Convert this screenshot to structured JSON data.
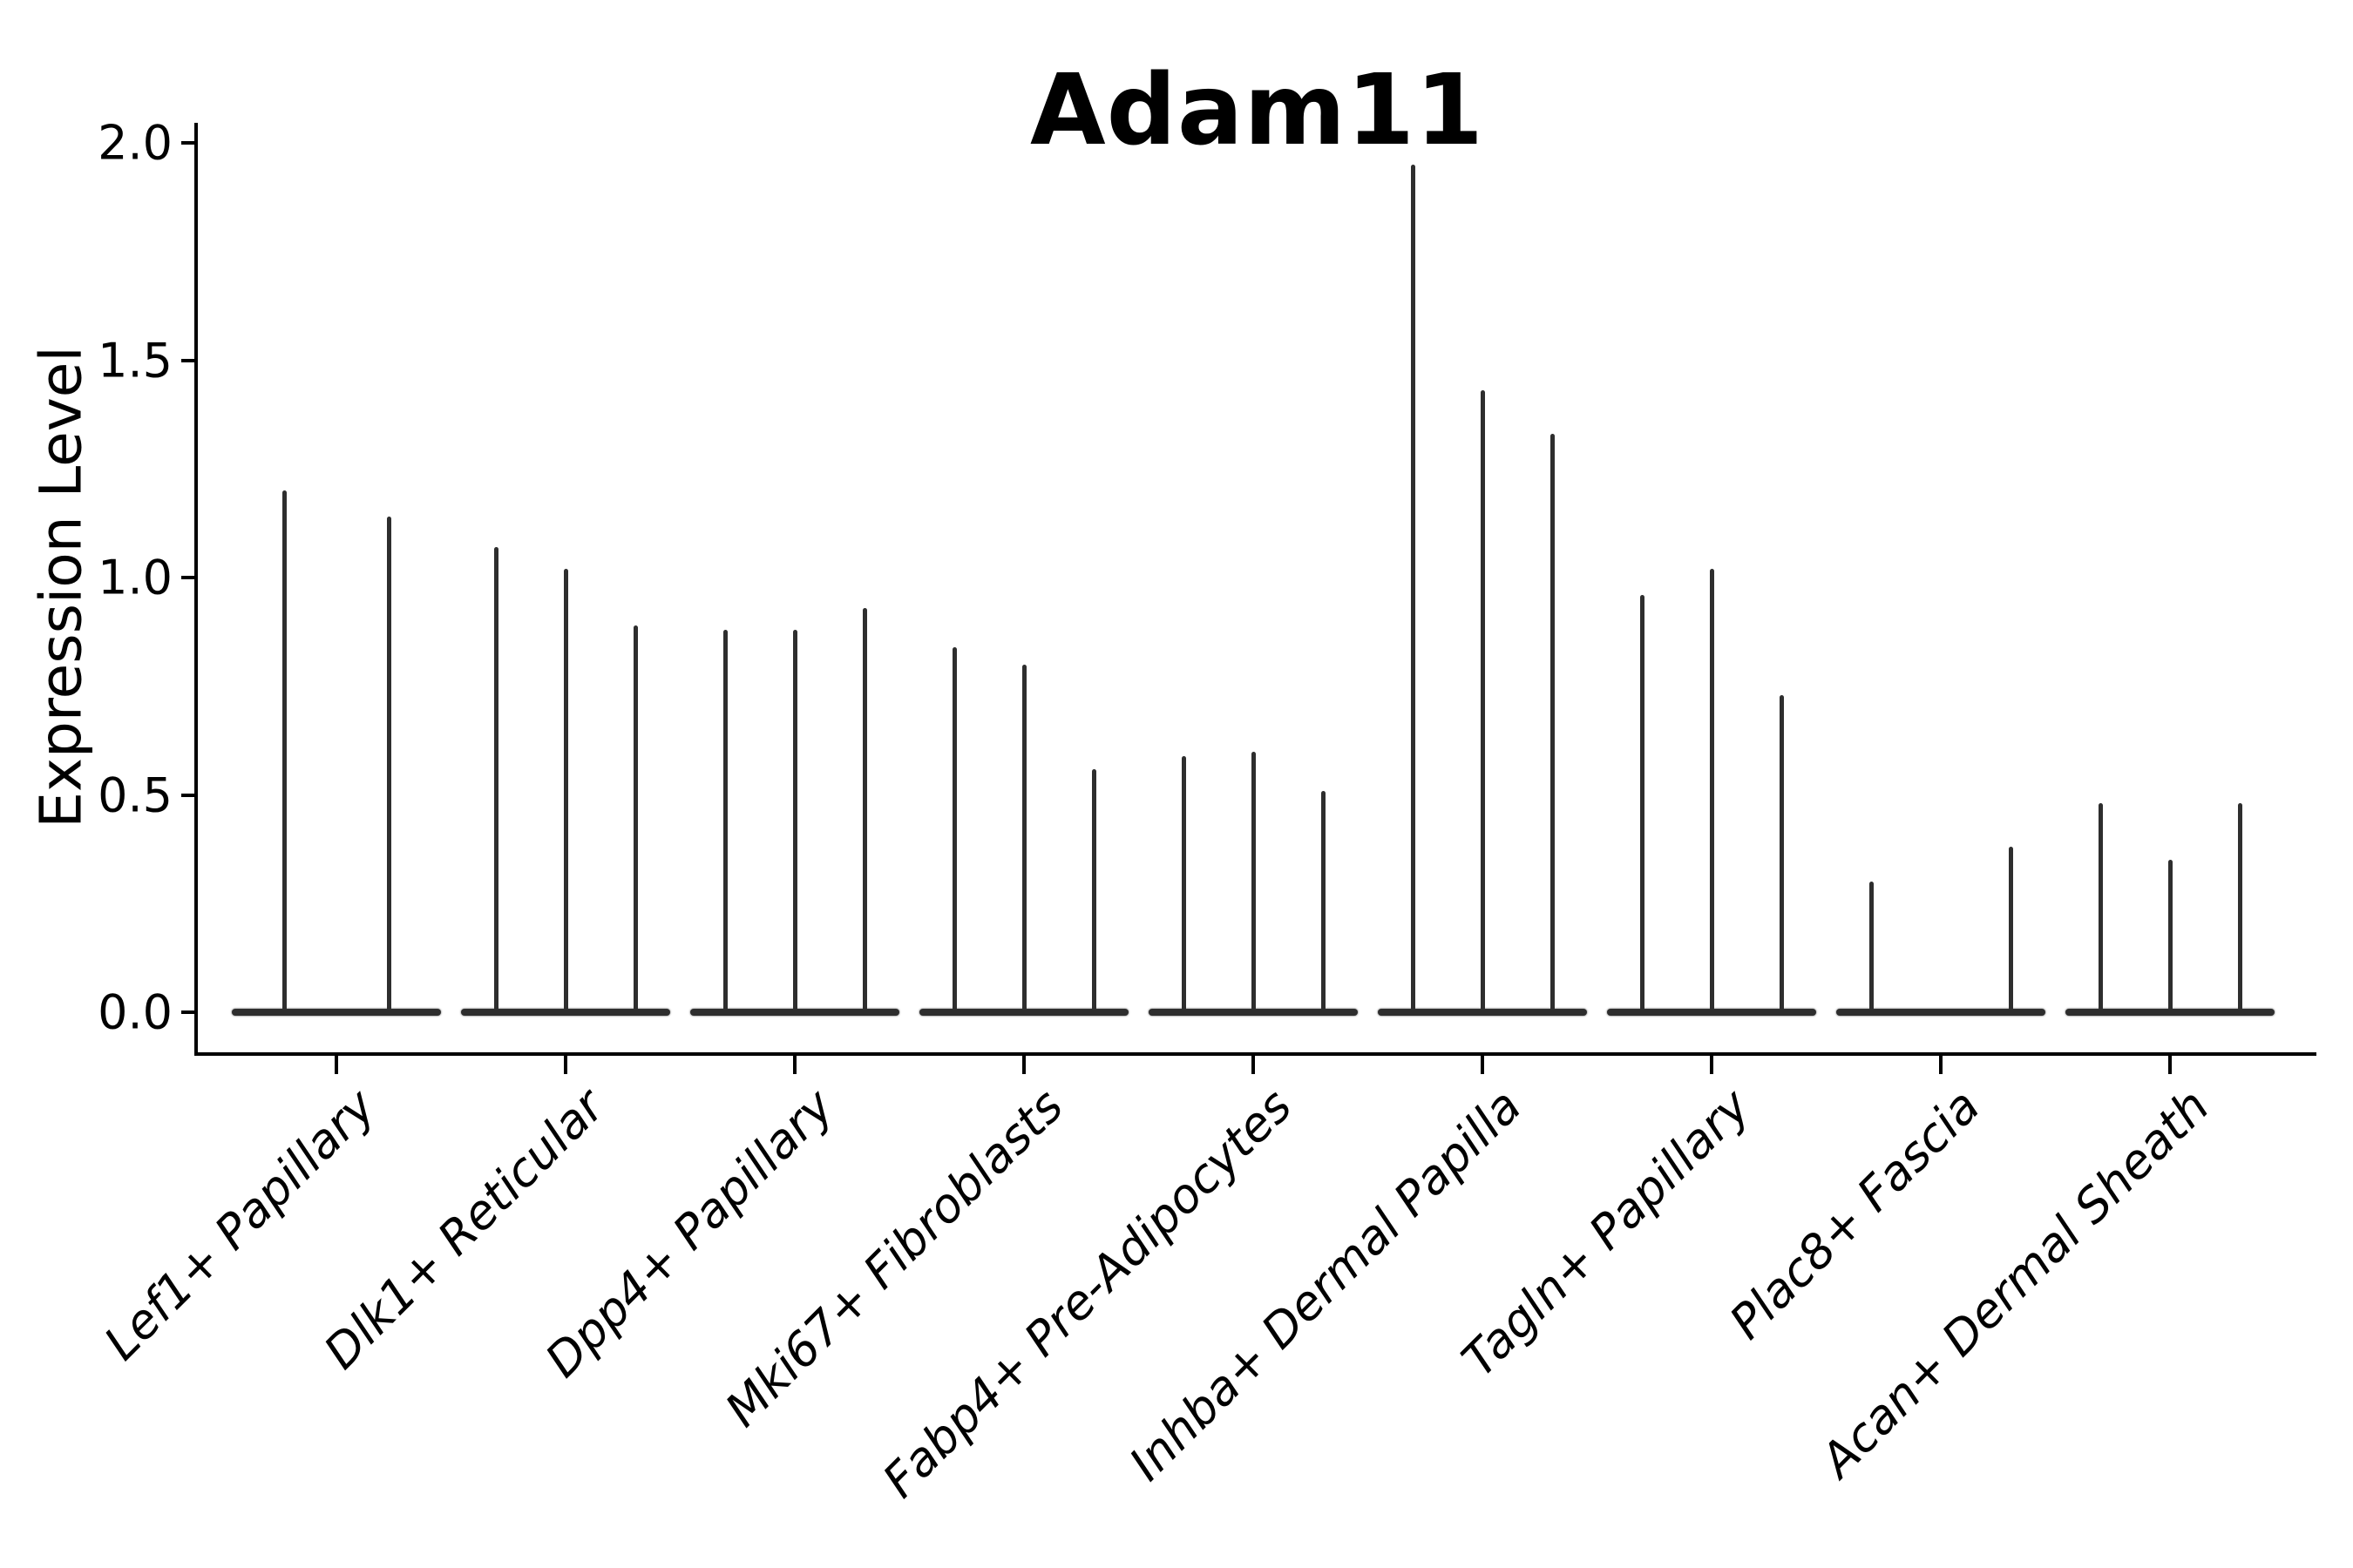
{
  "title": "Adam11",
  "chart_data": {
    "type": "violin",
    "title": "Adam11",
    "xlabel": "",
    "ylabel": "Expression Level",
    "ylim": [
      0.0,
      2.0
    ],
    "yticks": [
      0.0,
      0.5,
      1.0,
      1.5,
      2.0
    ],
    "ytick_labels": [
      "0.0",
      "0.5",
      "1.0",
      "1.5",
      "2.0"
    ],
    "grid": false,
    "legend": null,
    "description": "Violin plot of Adam11 expression; each category holds 2-3 thin spike-like violins (one per sample); values are the maximum expression reached by each violin spike, base pancakes sit at 0.",
    "categories": [
      "Lef1+ Papillary",
      "Dlk1+ Reticular",
      "Dpp4+ Papillary",
      "Mki67+ Fibroblasts",
      "Fabp4+ Pre-Adipocytes",
      "Inhba+ Dermal Papilla",
      "Tagln+ Papillary",
      "Plac8+ Fascia",
      "Acan+ Dermal Sheath"
    ],
    "groups": [
      {
        "label": "Lef1+ Papillary",
        "violin_maxima": [
          1.2,
          1.14
        ]
      },
      {
        "label": "Dlk1+ Reticular",
        "violin_maxima": [
          1.07,
          1.02,
          0.89
        ]
      },
      {
        "label": "Dpp4+ Papillary",
        "violin_maxima": [
          0.88,
          0.88,
          0.93
        ]
      },
      {
        "label": "Mki67+ Fibroblasts",
        "violin_maxima": [
          0.84,
          0.8,
          0.56
        ]
      },
      {
        "label": "Fabp4+ Pre-Adipocytes",
        "violin_maxima": [
          0.59,
          0.6,
          0.51
        ]
      },
      {
        "label": "Inhba+ Dermal Papilla",
        "violin_maxima": [
          1.95,
          1.43,
          1.33
        ]
      },
      {
        "label": "Tagln+ Papillary",
        "violin_maxima": [
          0.96,
          1.02,
          0.73
        ]
      },
      {
        "label": "Plac8+ Fascia",
        "violin_maxima": [
          0.3,
          0.0,
          0.38
        ]
      },
      {
        "label": "Acan+ Dermal Sheath",
        "violin_maxima": [
          0.48,
          0.35,
          0.48
        ]
      }
    ],
    "colors": {
      "violin": "#2e2e2e",
      "spine": "#000000",
      "text": "#000000",
      "background": "#ffffff"
    }
  }
}
